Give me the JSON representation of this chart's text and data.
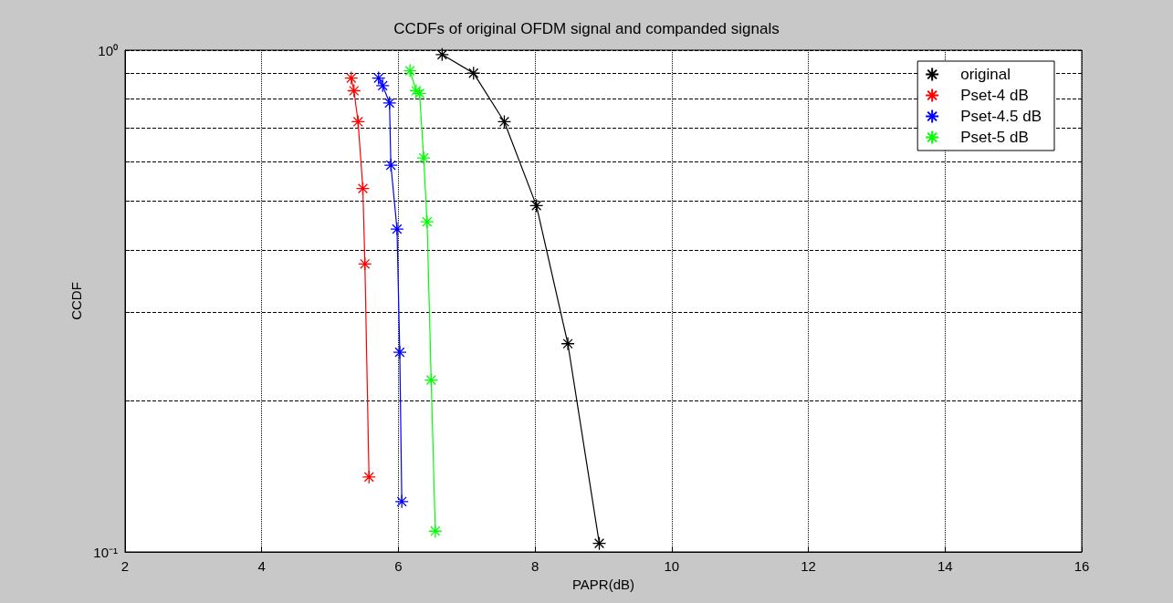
{
  "chart_data": {
    "type": "line",
    "title": "CCDFs of original OFDM signal and companded signals",
    "xlabel": "PAPR(dB)",
    "ylabel": "CCDF",
    "xlim": [
      2,
      16
    ],
    "xticks": [
      2,
      4,
      6,
      8,
      10,
      12,
      14,
      16
    ],
    "ylim": [
      0.1,
      1
    ],
    "yticks": [
      {
        "value": 0.1,
        "label": "10⁻¹"
      },
      {
        "value": 0.2,
        "label": null
      },
      {
        "value": 0.3,
        "label": null
      },
      {
        "value": 0.4,
        "label": null
      },
      {
        "value": 0.5,
        "label": null
      },
      {
        "value": 0.6,
        "label": null
      },
      {
        "value": 0.7,
        "label": null
      },
      {
        "value": 0.8,
        "label": null
      },
      {
        "value": 0.9,
        "label": null
      },
      {
        "value": 1,
        "label": "10⁰"
      }
    ],
    "log": "y",
    "grid": true,
    "legend": "top right",
    "marker": "cross",
    "line_style": "solid",
    "series": [
      {
        "name": "original",
        "color": "#000000",
        "x": [
          6.64,
          7.1,
          7.55,
          8.02,
          8.48,
          8.94
        ],
        "values": [
          0.98,
          0.9,
          0.72,
          0.49,
          0.26,
          0.104
        ]
      },
      {
        "name": "Pset-4 dB",
        "color": "#ff0000",
        "x": [
          5.31,
          5.35,
          5.41,
          5.48,
          5.51,
          5.57
        ],
        "values": [
          0.88,
          0.83,
          0.72,
          0.53,
          0.375,
          0.141
        ]
      },
      {
        "name": "Pset-4.5 dB",
        "color": "#0000ff",
        "x": [
          5.71,
          5.77,
          5.87,
          5.89,
          5.98,
          6.02,
          6.05
        ],
        "values": [
          0.88,
          0.85,
          0.785,
          0.59,
          0.44,
          0.25,
          0.126
        ]
      },
      {
        "name": "Pset-5 dB",
        "color": "#00ff00",
        "x": [
          6.17,
          6.26,
          6.31,
          6.37,
          6.42,
          6.48,
          6.54
        ],
        "values": [
          0.91,
          0.83,
          0.82,
          0.61,
          0.455,
          0.22,
          0.11
        ]
      }
    ]
  }
}
